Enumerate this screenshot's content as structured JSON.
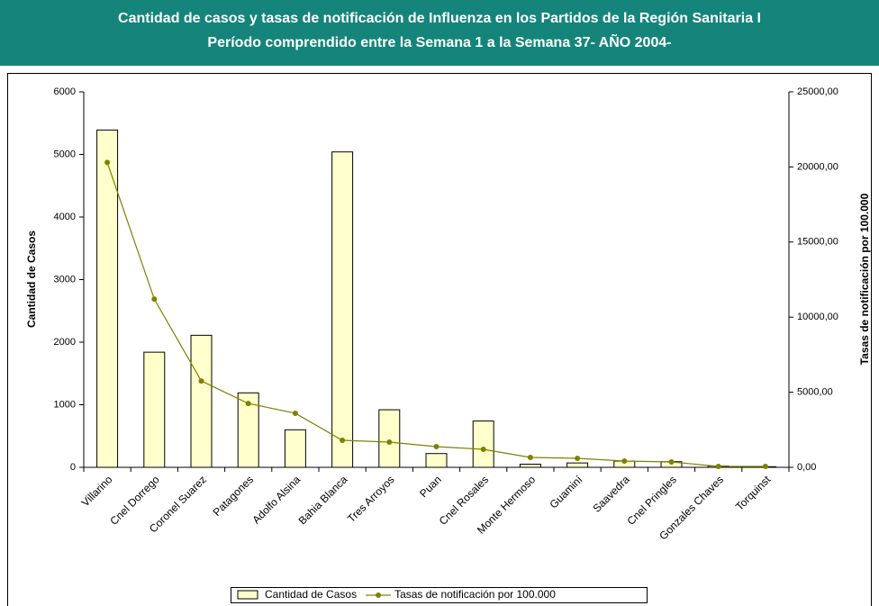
{
  "chart_data": {
    "type": "bar_line",
    "title": "Cantidad de casos y tasas de notificación de Influenza en los Partidos de la Región Sanitaria  I",
    "subtitle": "Período comprendido entre la Semana 1 a la Semana 37- AÑO 2004-",
    "ylabel": "Cantidad de Casos",
    "y2label": "Tasas de notificación por 100.000",
    "categories": [
      "Villarino",
      "Cnel Dorrego",
      "Coronel Suarez",
      "Patagones",
      "Adolfo Alsina",
      "Bahia Blanca",
      "Tres Arroyos",
      "Puan",
      "Cnel Rosales",
      "Monte Hermoso",
      "Guaminí",
      "Saavedra",
      "Cnel Pringles",
      "Gonzales Chaves",
      "Torquinst"
    ],
    "series": [
      {
        "name": "Cantidad de Casos",
        "type": "bar",
        "color": "#ffffcc",
        "axis": "y",
        "values": [
          5390,
          1840,
          2110,
          1190,
          600,
          5040,
          920,
          220,
          740,
          50,
          70,
          100,
          90,
          20,
          10
        ]
      },
      {
        "name": "Tasas de notificación por 100.000",
        "type": "line",
        "color": "#808000",
        "axis": "y2",
        "values": [
          20300,
          11200,
          5750,
          4250,
          3600,
          1800,
          1680,
          1380,
          1200,
          660,
          600,
          420,
          360,
          60,
          60
        ]
      }
    ],
    "ylim": [
      0,
      6000
    ],
    "yticks": [
      0,
      1000,
      2000,
      3000,
      4000,
      5000,
      6000
    ],
    "y2lim": [
      0,
      25000
    ],
    "y2ticks": [
      {
        "value": 0,
        "label": "0,00"
      },
      {
        "value": 5000,
        "label": "5000,00"
      },
      {
        "value": 10000,
        "label": "10000,00"
      },
      {
        "value": 15000,
        "label": "15000,00"
      },
      {
        "value": 20000,
        "label": "20000,00"
      },
      {
        "value": 25000,
        "label": "25000,00"
      }
    ],
    "legend": "bottom"
  }
}
